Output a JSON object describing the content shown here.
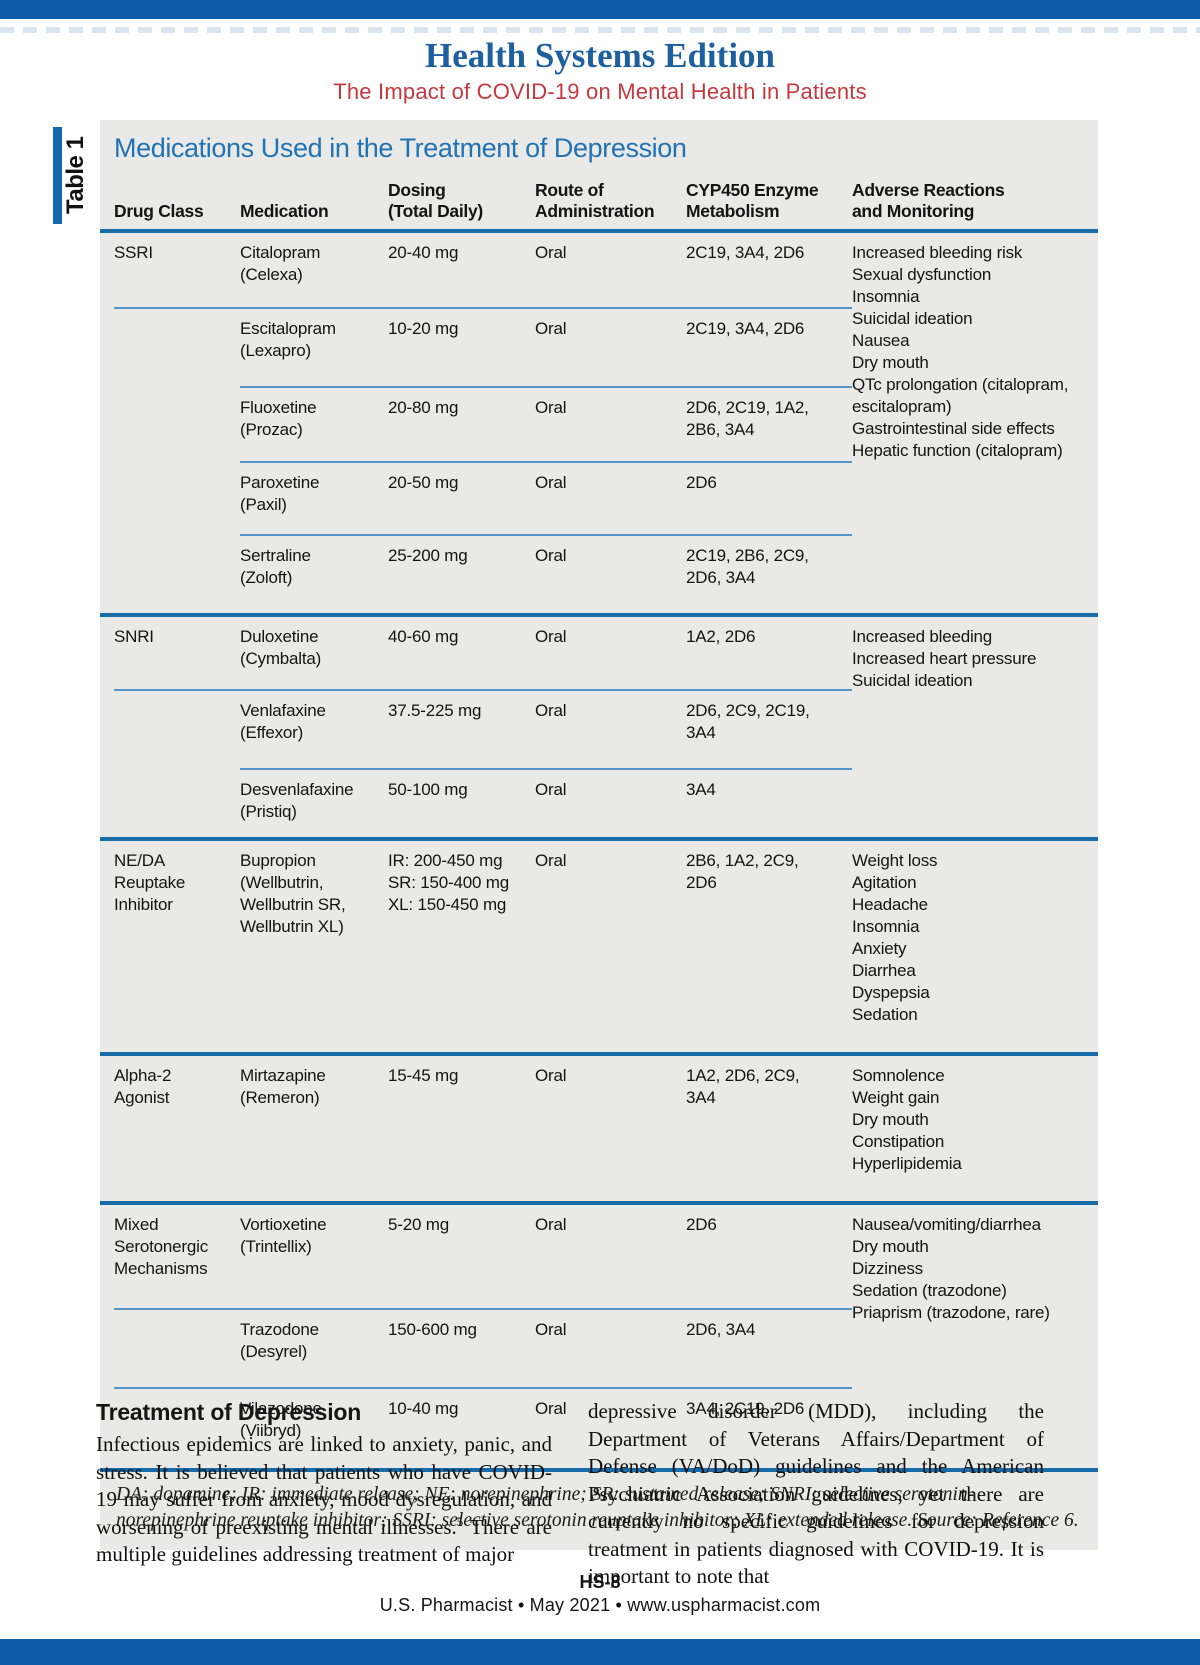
{
  "colors": {
    "band_blue": "#0d5ba8",
    "masthead_blue": "#1d5f9f",
    "subtitle_red": "#c5383f",
    "table_title_blue": "#2173b4",
    "rule_dark_blue": "#176ba8",
    "rule_light_blue": "#5695c8",
    "table_bg_gray": "#e9e9e8"
  },
  "masthead": {
    "title": "Health Systems Edition",
    "subtitle": "The Impact of COVID-19 on Mental Health in Patients"
  },
  "table": {
    "label": "Table 1",
    "title": "Medications Used in the Treatment of Depression",
    "columns": [
      "Drug Class",
      "Medication",
      "Dosing\n(Total Daily)",
      "Route of\nAdministration",
      "CYP450 Enzyme\nMetabolism",
      "Adverse Reactions\nand Monitoring"
    ],
    "groups": [
      {
        "drug_class": "SSRI",
        "adverse": "Increased bleeding risk\nSexual dysfunction\nInsomnia\nSuicidal ideation\nNausea\nDry mouth\nQTc prolongation (citalopram, escitalopram)\nGastrointestinal side effects\nHepatic function (citalopram)",
        "rows": [
          {
            "medication": "Citalopram\n(Celexa)",
            "dosing": "20-40 mg",
            "route": "Oral",
            "cyp450": "2C19, 3A4, 2D6"
          },
          {
            "medication": "Escitalopram\n(Lexapro)",
            "dosing": "10-20 mg",
            "route": "Oral",
            "cyp450": "2C19, 3A4, 2D6"
          },
          {
            "medication": "Fluoxetine\n(Prozac)",
            "dosing": "20-80 mg",
            "route": "Oral",
            "cyp450": "2D6, 2C19, 1A2,\n2B6, 3A4"
          },
          {
            "medication": "Paroxetine\n(Paxil)",
            "dosing": "20-50 mg",
            "route": "Oral",
            "cyp450": "2D6"
          },
          {
            "medication": "Sertraline\n(Zoloft)",
            "dosing": "25-200 mg",
            "route": "Oral",
            "cyp450": "2C19, 2B6, 2C9,\n2D6, 3A4"
          }
        ]
      },
      {
        "drug_class": "SNRI",
        "adverse": "Increased bleeding\nIncreased heart pressure\nSuicidal ideation",
        "rows": [
          {
            "medication": "Duloxetine\n(Cymbalta)",
            "dosing": "40-60 mg",
            "route": "Oral",
            "cyp450": "1A2, 2D6"
          },
          {
            "medication": "Venlafaxine\n(Effexor)",
            "dosing": "37.5-225 mg",
            "route": "Oral",
            "cyp450": "2D6, 2C9, 2C19,\n3A4"
          },
          {
            "medication": "Desvenlafaxine\n(Pristiq)",
            "dosing": "50-100 mg",
            "route": "Oral",
            "cyp450": "3A4"
          }
        ]
      },
      {
        "drug_class": "NE/DA\nReuptake\nInhibitor",
        "adverse": "Weight loss\nAgitation\nHeadache\nInsomnia\nAnxiety\nDiarrhea\nDyspepsia\nSedation",
        "rows": [
          {
            "medication": "Bupropion\n(Wellbutrin,\nWellbutrin SR,\nWellbutrin XL)",
            "dosing": "IR: 200-450 mg\nSR: 150-400 mg\nXL: 150-450 mg",
            "route": "Oral",
            "cyp450": "2B6, 1A2, 2C9,\n2D6"
          }
        ]
      },
      {
        "drug_class": "Alpha-2\nAgonist",
        "adverse": "Somnolence\nWeight gain\nDry mouth\nConstipation\nHyperlipidemia",
        "rows": [
          {
            "medication": "Mirtazapine\n(Remeron)",
            "dosing": "15-45 mg",
            "route": "Oral",
            "cyp450": "1A2, 2D6, 2C9,\n3A4"
          }
        ]
      },
      {
        "drug_class": "Mixed\nSerotonergic\nMechanisms",
        "adverse": "Nausea/vomiting/diarrhea\nDry mouth\nDizziness\nSedation (trazodone)\nPriaprism (trazodone, rare)",
        "rows": [
          {
            "medication": "Vortioxetine\n(Trintellix)",
            "dosing": "5-20 mg",
            "route": "Oral",
            "cyp450": "2D6"
          },
          {
            "medication": "Trazodone\n(Desyrel)",
            "dosing": "150-600 mg",
            "route": "Oral",
            "cyp450": "2D6, 3A4"
          },
          {
            "medication": "Vilazodone\n(Viibryd)",
            "dosing": "10-40 mg",
            "route": "Oral",
            "cyp450": "3A4, 2C19, 2D6"
          }
        ]
      }
    ],
    "footnote": "DA: dopamine; IR: immediate release; NE: norepinephrine; SR: sustained release; SNRI: selective serotonin-norepinephrine reuptake inhibitor; SSRI: selective serotonin reuptake inhibitor; XL: extended release. Source: Reference 6."
  },
  "article": {
    "heading": "Treatment of Depression",
    "left_before_ref": "Infectious epidemics are linked to anxiety, panic, and stress. It is believed that patients who have COVID-19 may suffer from anxiety, mood dysregulation, and worsening of preexisting mental illnesses.",
    "left_ref": "5",
    "left_after_ref": " There are multiple guidelines addressing treatment of major",
    "right_column": "depressive disorder (MDD), including the Department of Veterans Affairs/Department of Defense (VA/DoD) guidelines and the American Psychiatric Association guidelines, yet there are currently no specific guidelines for depression treatment in patients diagnosed with COVID-19. It is important to note that"
  },
  "footer": {
    "page_number": "HS-8",
    "credit": "U.S. Pharmacist • May 2021 • www.uspharmacist.com"
  }
}
